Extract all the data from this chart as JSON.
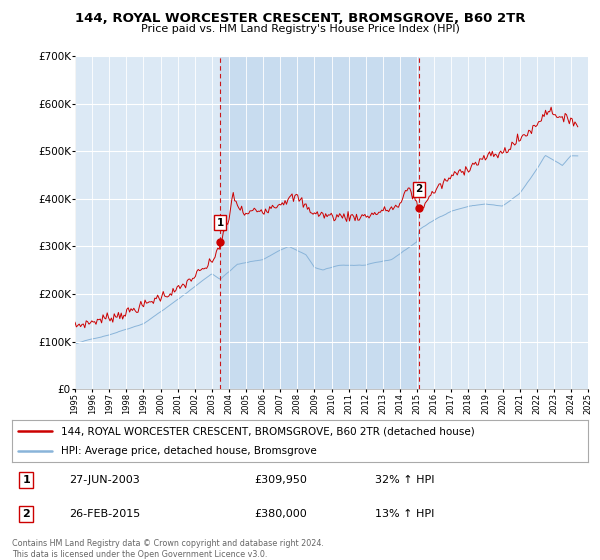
{
  "title": "144, ROYAL WORCESTER CRESCENT, BROMSGROVE, B60 2TR",
  "subtitle": "Price paid vs. HM Land Registry's House Price Index (HPI)",
  "legend_line1": "144, ROYAL WORCESTER CRESCENT, BROMSGROVE, B60 2TR (detached house)",
  "legend_line2": "HPI: Average price, detached house, Bromsgrove",
  "annotation1_label": "1",
  "annotation1_date": "27-JUN-2003",
  "annotation1_price": "£309,950",
  "annotation1_hpi": "32% ↑ HPI",
  "annotation2_label": "2",
  "annotation2_date": "26-FEB-2015",
  "annotation2_price": "£380,000",
  "annotation2_hpi": "13% ↑ HPI",
  "footer": "Contains HM Land Registry data © Crown copyright and database right 2024.\nThis data is licensed under the Open Government Licence v3.0.",
  "sale_color": "#cc0000",
  "hpi_color": "#89b4d9",
  "background_color": "#dce9f5",
  "plot_bg_color": "#dce9f5",
  "highlight_color": "#c5daef",
  "ylim": [
    0,
    700000
  ],
  "yticks": [
    0,
    100000,
    200000,
    300000,
    400000,
    500000,
    600000,
    700000
  ],
  "ytick_labels": [
    "£0",
    "£100K",
    "£200K",
    "£300K",
    "£400K",
    "£500K",
    "£600K",
    "£700K"
  ],
  "marker1_x": 2003.49,
  "marker1_y": 309950,
  "marker2_x": 2015.13,
  "marker2_y": 380000,
  "sale1_x": 2003.49,
  "sale2_x": 2015.13,
  "xlim_left": 1995.0,
  "xlim_right": 2025.0
}
